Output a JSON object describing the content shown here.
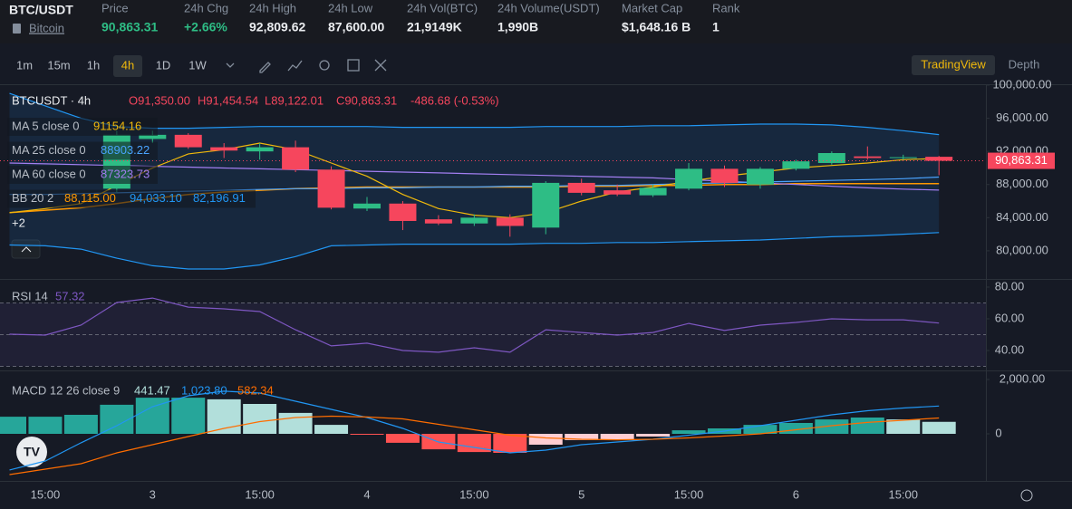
{
  "header": {
    "pair": "BTC/USDT",
    "coin": "Bitcoin",
    "stats": [
      {
        "label": "Price",
        "value": "90,863.31",
        "color": "#2ebd85"
      },
      {
        "label": "24h Chg",
        "value": "+2.66%",
        "color": "#2ebd85"
      },
      {
        "label": "24h High",
        "value": "92,809.62",
        "color": "#eaecef"
      },
      {
        "label": "24h Low",
        "value": "87,600.00",
        "color": "#eaecef"
      },
      {
        "label": "24h Vol(BTC)",
        "value": "21,9149K",
        "color": "#eaecef"
      },
      {
        "label": "24h Volume(USDT)",
        "value": "1,990B",
        "color": "#eaecef"
      },
      {
        "label": "Market Cap",
        "value": "$1,648.16 B",
        "color": "#eaecef"
      },
      {
        "label": "Rank",
        "value": "1",
        "color": "#eaecef"
      }
    ]
  },
  "toolbar": {
    "intervals": [
      "1m",
      "15m",
      "1h",
      "4h",
      "1D",
      "1W"
    ],
    "active": 3,
    "views": [
      "TradingView",
      "Depth"
    ]
  },
  "main": {
    "legend": {
      "symbol": "BTCUSDT · 4h",
      "open": "O91,350.00",
      "high": "H91,454.54",
      "low": "L89,122.01",
      "close": "C90,863.31",
      "change": "-486.68 (-0.53%)",
      "more": "+2",
      "indicators": [
        {
          "name": "MA 5 close 0",
          "values": [
            "91154.16"
          ],
          "colors": [
            "#f0b90b"
          ]
        },
        {
          "name": "MA 25 close 0",
          "values": [
            "88903.22"
          ],
          "colors": [
            "#4aa3ff"
          ]
        },
        {
          "name": "MA 60 close 0",
          "values": [
            "87323.73"
          ],
          "colors": [
            "#a27ef0"
          ]
        },
        {
          "name": "BB 20 2",
          "values": [
            "88,115.00",
            "94,033.10",
            "82,196.91"
          ],
          "colors": [
            "#ff9800",
            "#2196f3",
            "#2196f3"
          ]
        }
      ]
    },
    "ylim": [
      76600,
      100000
    ],
    "yticks": [
      {
        "value": 80000,
        "label": "80,000.00"
      },
      {
        "value": 84000,
        "label": "84,000.00"
      },
      {
        "value": 88000,
        "label": "88,000.00"
      },
      {
        "value": 92000,
        "label": "92,000.00"
      },
      {
        "value": 96000,
        "label": "96,000.00"
      },
      {
        "value": 100000,
        "label": "100,000.00"
      }
    ],
    "last_price": {
      "value": 90863.31,
      "label": "90,863.31"
    },
    "up_color": "#2ebd85",
    "down_color": "#f6465d",
    "candles": [
      null,
      null,
      null,
      {
        "o": 87500,
        "h": 94500,
        "l": 87000,
        "c": 94000
      },
      {
        "o": 93500,
        "h": 94500,
        "l": 93000,
        "c": 94000
      },
      {
        "o": 94000,
        "h": 94200,
        "l": 92300,
        "c": 92500
      },
      {
        "o": 92500,
        "h": 93000,
        "l": 91200,
        "c": 92100
      },
      {
        "o": 92000,
        "h": 93000,
        "l": 91000,
        "c": 92500
      },
      {
        "o": 92500,
        "h": 93300,
        "l": 89500,
        "c": 89800
      },
      {
        "o": 89800,
        "h": 90200,
        "l": 85000,
        "c": 85200
      },
      {
        "o": 85100,
        "h": 86500,
        "l": 84800,
        "c": 85700
      },
      {
        "o": 85700,
        "h": 86000,
        "l": 82500,
        "c": 83600
      },
      {
        "o": 83800,
        "h": 84300,
        "l": 83100,
        "c": 83300
      },
      {
        "o": 83300,
        "h": 84400,
        "l": 83000,
        "c": 84000
      },
      {
        "o": 84000,
        "h": 84400,
        "l": 81700,
        "c": 83000
      },
      {
        "o": 82800,
        "h": 88400,
        "l": 82000,
        "c": 88200
      },
      {
        "o": 88200,
        "h": 88700,
        "l": 86700,
        "c": 87000
      },
      {
        "o": 87300,
        "h": 88000,
        "l": 86600,
        "c": 86800
      },
      {
        "o": 86700,
        "h": 88000,
        "l": 86500,
        "c": 87600
      },
      {
        "o": 87500,
        "h": 90600,
        "l": 87300,
        "c": 89900
      },
      {
        "o": 89900,
        "h": 90300,
        "l": 87700,
        "c": 88200
      },
      {
        "o": 88000,
        "h": 90100,
        "l": 87500,
        "c": 89900
      },
      {
        "o": 89900,
        "h": 91000,
        "l": 89700,
        "c": 90800
      },
      {
        "o": 90600,
        "h": 92000,
        "l": 90400,
        "c": 91800
      },
      {
        "o": 91400,
        "h": 92600,
        "l": 91000,
        "c": 91200
      },
      {
        "o": 91200,
        "h": 91600,
        "l": 91000,
        "c": 91300
      },
      {
        "o": 91350,
        "h": 91454.54,
        "l": 89122.01,
        "c": 90863.31
      }
    ],
    "bb_fill": "rgba(33,150,243,0.12)",
    "lines": [
      {
        "color": "#2196f3",
        "values": [
          99000,
          97500,
          96000,
          95000,
          94800,
          94800,
          94900,
          95000,
          95000,
          95000,
          95000,
          94900,
          94900,
          94900,
          94900,
          95000,
          95000,
          95000,
          95100,
          95100,
          95200,
          95300,
          95300,
          95200,
          94900,
          94500,
          94033.1
        ]
      },
      {
        "color": "#2196f3",
        "values": [
          80700,
          80600,
          80200,
          79100,
          78200,
          77800,
          77800,
          78300,
          79300,
          80600,
          80700,
          80800,
          80800,
          80800,
          80800,
          80900,
          80900,
          81000,
          81000,
          81100,
          81200,
          81300,
          81500,
          81700,
          81800,
          82000,
          82196.91
        ]
      },
      {
        "color": "#ff9800",
        "values": [
          84600,
          84900,
          85200,
          85700,
          86300,
          86800,
          87100,
          87300,
          87500,
          87600,
          87700,
          87700,
          87700,
          87700,
          87700,
          87700,
          87800,
          87800,
          87900,
          87900,
          88000,
          88000,
          88100,
          88100,
          88100,
          88100,
          88115
        ]
      },
      {
        "color": "#a27ef0",
        "values": [
          90600,
          90500,
          90400,
          90300,
          90200,
          90100,
          90000,
          89900,
          89800,
          89700,
          89600,
          89500,
          89400,
          89300,
          89200,
          89100,
          89000,
          88900,
          88800,
          88600,
          88400,
          88200,
          88000,
          87800,
          87600,
          87450,
          87323.73
        ]
      },
      {
        "color": "#4aa3ff",
        "values": [
          86800,
          86800,
          86900,
          87000,
          87100,
          87200,
          87300,
          87400,
          87500,
          87500,
          87600,
          87600,
          87700,
          87700,
          87800,
          87800,
          87900,
          87900,
          88000,
          88100,
          88200,
          88300,
          88400,
          88500,
          88600,
          88700,
          88903.22
        ]
      },
      {
        "color": "#f0b90b",
        "values": [
          84600,
          85100,
          85700,
          87900,
          90000,
          91700,
          92200,
          93000,
          92200,
          90600,
          89000,
          86800,
          85100,
          84300,
          84000,
          84600,
          86000,
          87100,
          87700,
          88400,
          89000,
          89500,
          90000,
          90300,
          90600,
          91000,
          91154.16
        ]
      }
    ]
  },
  "rsi": {
    "legend": {
      "name": "RSI 14",
      "value": "57.32"
    },
    "color": "#7e57c2",
    "ylim": [
      28,
      84
    ],
    "bands": [
      30,
      50,
      70
    ],
    "yticks": [
      {
        "value": 40,
        "label": "40.00"
      },
      {
        "value": 60,
        "label": "60.00"
      },
      {
        "value": 80,
        "label": "80.00"
      }
    ],
    "values": [
      50.3,
      49.7,
      56,
      70.3,
      73.1,
      67.4,
      66.3,
      64.6,
      53.1,
      42.9,
      44.6,
      40,
      38.9,
      41.7,
      38.9,
      53.1,
      51.4,
      49.7,
      51.4,
      57.1,
      52.6,
      56,
      57.7,
      60,
      59.4,
      59.4,
      57.32
    ]
  },
  "macd": {
    "legend": {
      "name": "MACD 12 26 close 9",
      "values": [
        "441.47",
        "1,023.80",
        "582.34"
      ],
      "colors": [
        "#b2dfdb",
        "#2196f3",
        "#ff6d00"
      ]
    },
    "ylim": [
      -1700,
      2300
    ],
    "yticks": [
      0,
      {
        "value": 2000,
        "label": "2,000.00"
      }
    ],
    "histogram": [
      630,
      630,
      700,
      1070,
      1330,
      1330,
      1270,
      1100,
      770,
      330,
      -30,
      -330,
      -570,
      -670,
      -700,
      -400,
      -230,
      -200,
      -100,
      130,
      200,
      330,
      400,
      530,
      600,
      530,
      441.47
    ],
    "macd": {
      "color": "#2196f3",
      "values": [
        -1330,
        -1000,
        -330,
        300,
        1000,
        1400,
        1570,
        1500,
        1200,
        900,
        600,
        200,
        -300,
        -500,
        -700,
        -600,
        -400,
        -300,
        -200,
        -50,
        100,
        300,
        500,
        700,
        850,
        950,
        1023.8
      ]
    },
    "signal": {
      "color": "#ff6d00",
      "values": [
        -1500,
        -1300,
        -1100,
        -700,
        -400,
        -100,
        200,
        450,
        600,
        650,
        620,
        550,
        350,
        150,
        -50,
        -150,
        -200,
        -220,
        -200,
        -150,
        -80,
        0,
        150,
        300,
        420,
        500,
        582.34
      ]
    }
  },
  "time_labels": [
    null,
    "15:00",
    null,
    null,
    "3",
    null,
    null,
    "15:00",
    null,
    null,
    "4",
    null,
    null,
    "15:00",
    null,
    null,
    "5",
    null,
    null,
    "15:00",
    null,
    null,
    "6",
    null,
    null,
    "15:00",
    null
  ]
}
